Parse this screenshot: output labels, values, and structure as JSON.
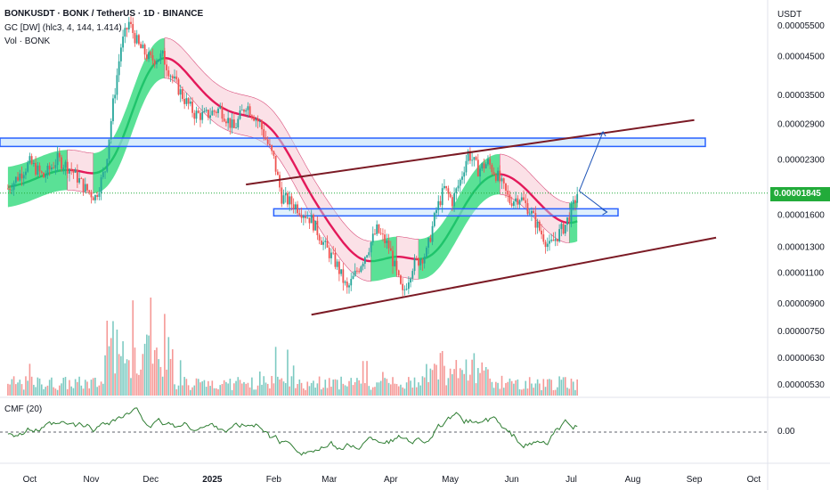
{
  "header": {
    "title": "BONKUSDT · BONK / TetherUS · 1D · BINANCE",
    "indicator": "GC [DW] (hlc3, 4, 144, 1.414)",
    "volume": "Vol · BONK",
    "cmf": "CMF (20)"
  },
  "price_axis": {
    "unit": "USDT",
    "current_price": "0.00001845",
    "current_price_color": "#22ab3a",
    "cmf_zero_label": "0.00"
  },
  "colors": {
    "up": "#26a69a",
    "down": "#ef5350",
    "band_green": "#3ddc84",
    "band_pink": "#f8c8d4",
    "midline_green": "#1fc46b",
    "midline_red": "#e3195a",
    "channel": "#7b1a24",
    "zone": "#2962ff",
    "cmf_line": "#2e7d32"
  },
  "chart_data": {
    "type": "candlestick",
    "title": "BONKUSDT · BONK / TetherUS · 1D · BINANCE",
    "x_ticks": [
      "Oct",
      "Nov",
      "Dec",
      "2025",
      "Feb",
      "Mar",
      "Apr",
      "May",
      "Jun",
      "Jul",
      "Aug",
      "Sep",
      "Oct"
    ],
    "y_ticks": [
      "0.00005500",
      "0.00004500",
      "0.00003500",
      "0.00002900",
      "0.00002300",
      "0.00001600",
      "0.00001300",
      "0.00001100",
      "0.00000900",
      "0.00000750",
      "0.00000630",
      "0.00000530"
    ],
    "y_scale": "log",
    "ylim": [
      4.9e-06,
      6.2e-05
    ],
    "last_price": 1.845e-05,
    "price_path": [
      [
        "2024-09-20",
        1.9e-05
      ],
      [
        "2024-10-01",
        2.25e-05
      ],
      [
        "2024-10-08",
        2.05e-05
      ],
      [
        "2024-10-15",
        2.3e-05
      ],
      [
        "2024-10-22",
        2.15e-05
      ],
      [
        "2024-10-29",
        1.9e-05
      ],
      [
        "2024-11-03",
        1.8e-05
      ],
      [
        "2024-11-08",
        2.15e-05
      ],
      [
        "2024-11-12",
        3.3e-05
      ],
      [
        "2024-11-16",
        4.8e-05
      ],
      [
        "2024-11-20",
        5.6e-05
      ],
      [
        "2024-11-25",
        4.8e-05
      ],
      [
        "2024-12-01",
        4.4e-05
      ],
      [
        "2024-12-07",
        4.5e-05
      ],
      [
        "2024-12-12",
        3.9e-05
      ],
      [
        "2024-12-18",
        3.4e-05
      ],
      [
        "2024-12-23",
        3.1e-05
      ],
      [
        "2024-12-28",
        3.05e-05
      ],
      [
        "2025-01-05",
        3.2e-05
      ],
      [
        "2025-01-12",
        2.8e-05
      ],
      [
        "2025-01-18",
        3.3e-05
      ],
      [
        "2025-01-25",
        2.9e-05
      ],
      [
        "2025-02-01",
        2.3e-05
      ],
      [
        "2025-02-05",
        1.8e-05
      ],
      [
        "2025-02-12",
        1.7e-05
      ],
      [
        "2025-02-20",
        1.55e-05
      ],
      [
        "2025-02-27",
        1.3e-05
      ],
      [
        "2025-03-05",
        1.15e-05
      ],
      [
        "2025-03-10",
        9.8e-06
      ],
      [
        "2025-03-18",
        1.2e-05
      ],
      [
        "2025-03-25",
        1.45e-05
      ],
      [
        "2025-03-31",
        1.3e-05
      ],
      [
        "2025-04-07",
        9.5e-06
      ],
      [
        "2025-04-12",
        1.15e-05
      ],
      [
        "2025-04-19",
        1.25e-05
      ],
      [
        "2025-04-24",
        1.65e-05
      ],
      [
        "2025-04-28",
        1.9e-05
      ],
      [
        "2025-05-02",
        1.75e-05
      ],
      [
        "2025-05-06",
        2e-05
      ],
      [
        "2025-05-10",
        2.4e-05
      ],
      [
        "2025-05-15",
        2.15e-05
      ],
      [
        "2025-05-20",
        2.25e-05
      ],
      [
        "2025-05-25",
        2.05e-05
      ],
      [
        "2025-05-31",
        1.75e-05
      ],
      [
        "2025-06-05",
        1.8e-05
      ],
      [
        "2025-06-10",
        1.65e-05
      ],
      [
        "2025-06-15",
        1.45e-05
      ],
      [
        "2025-06-20",
        1.3e-05
      ],
      [
        "2025-06-24",
        1.4e-05
      ],
      [
        "2025-06-28",
        1.5e-05
      ],
      [
        "2025-07-02",
        1.7e-05
      ],
      [
        "2025-07-04",
        1.845e-05
      ]
    ],
    "volume_bars": 290,
    "cmf_zero": 0.0,
    "resistance_zone": [
      2.5e-05,
      2.64e-05
    ],
    "support_zone": [
      1.59e-05,
      1.665e-05
    ]
  }
}
